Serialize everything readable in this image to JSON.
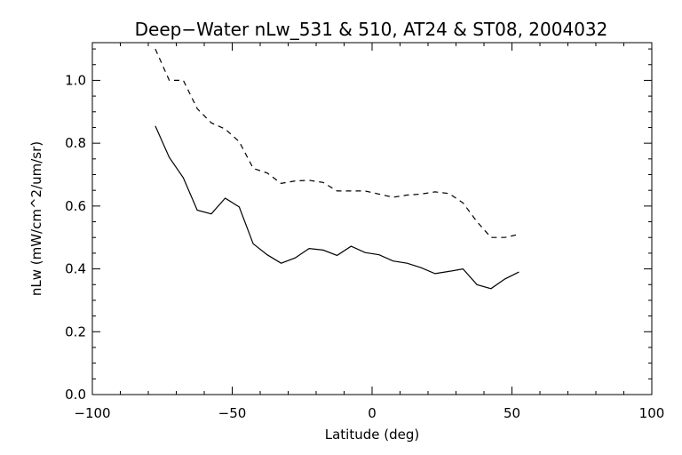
{
  "chart_data": {
    "type": "line",
    "title": "Deep−Water nLw_531 & 510, AT24 & ST08, 2004032",
    "xlabel": "Latitude (deg)",
    "ylabel": "nLw (mW/cm^2/um/sr)",
    "xlim": [
      -100,
      100
    ],
    "ylim": [
      0.0,
      1.12
    ],
    "x_ticks": [
      -100,
      -50,
      0,
      50,
      100
    ],
    "x_tick_labels": [
      "−100",
      "−50",
      "0",
      "50",
      "100"
    ],
    "x_minor_step": 10,
    "y_ticks": [
      0.0,
      0.2,
      0.4,
      0.6,
      0.8,
      1.0
    ],
    "y_tick_labels": [
      "0.0",
      "0.2",
      "0.4",
      "0.6",
      "0.8",
      "1.0"
    ],
    "y_minor_step": 0.05,
    "grid": false,
    "series": [
      {
        "name": "nLw_531",
        "style": "solid",
        "x": [
          -77.5,
          -72.5,
          -67.5,
          -62.5,
          -57.5,
          -52.5,
          -47.5,
          -42.5,
          -37.5,
          -32.5,
          -27.5,
          -22.5,
          -17.5,
          -12.5,
          -7.5,
          -2.5,
          2.5,
          7.5,
          12.5,
          17.5,
          22.5,
          27.5,
          32.5,
          37.5,
          42.5,
          47.5,
          52.5
        ],
        "y": [
          0.855,
          0.755,
          0.69,
          0.587,
          0.575,
          0.625,
          0.597,
          0.48,
          0.445,
          0.418,
          0.435,
          0.465,
          0.46,
          0.443,
          0.472,
          0.452,
          0.445,
          0.425,
          0.418,
          0.404,
          0.385,
          0.392,
          0.4,
          0.35,
          0.337,
          0.368,
          0.39
        ]
      },
      {
        "name": "nLw_510",
        "style": "dashed",
        "x": [
          -77.5,
          -72.5,
          -67.5,
          -62.5,
          -57.5,
          -52.5,
          -47.5,
          -42.5,
          -37.5,
          -32.5,
          -27.5,
          -22.5,
          -17.5,
          -12.5,
          -7.5,
          -2.5,
          2.5,
          7.5,
          12.5,
          17.5,
          22.5,
          27.5,
          32.5,
          37.5,
          42.5,
          47.5,
          52.5
        ],
        "y": [
          1.1,
          1.0,
          1.0,
          0.91,
          0.865,
          0.845,
          0.805,
          0.72,
          0.705,
          0.672,
          0.68,
          0.682,
          0.675,
          0.648,
          0.648,
          0.648,
          0.638,
          0.628,
          0.635,
          0.638,
          0.645,
          0.64,
          0.61,
          0.55,
          0.5,
          0.5,
          0.51
        ]
      }
    ]
  }
}
